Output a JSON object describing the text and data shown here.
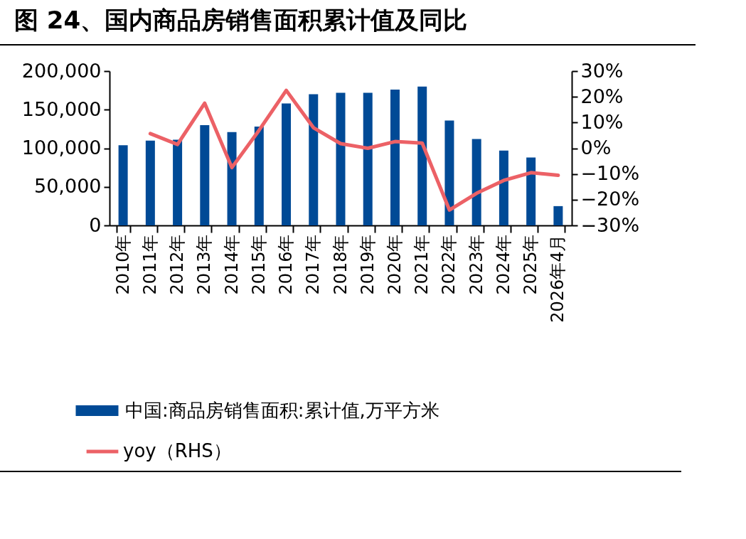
{
  "chart_data": {
    "type": "bar",
    "title": "图 24、国内商品房销售面积累计值及同比",
    "categories": [
      "2010年",
      "2011年",
      "2012年",
      "2013年",
      "2014年",
      "2015年",
      "2016年",
      "2017年",
      "2018年",
      "2019年",
      "2020年",
      "2021年",
      "2022年",
      "2023年",
      "2024年",
      "2025年",
      "2026年4月"
    ],
    "series": [
      {
        "name": "中国:商品房销售面积:累计值,万平方米",
        "color": "#004a96",
        "values": [
          104000,
          110000,
          111000,
          130000,
          121000,
          128000,
          158000,
          170000,
          172000,
          172000,
          176000,
          180000,
          136000,
          112000,
          97000,
          88000,
          25000
        ]
      },
      {
        "name": "yoy（RHS）",
        "type": "line",
        "axis": "y2",
        "color": "#ec6166",
        "values": [
          null,
          5.7,
          1.5,
          17.5,
          -7.5,
          7,
          22.5,
          8,
          1.8,
          0,
          2.6,
          2,
          -24,
          -17.5,
          -12.5,
          -9.5,
          -10.5
        ]
      }
    ],
    "ylim": [
      0,
      200000
    ],
    "yticks": [
      {
        "value": 0,
        "label": "0"
      },
      {
        "value": 50000,
        "label": "50,000"
      },
      {
        "value": 100000,
        "label": "100,000"
      },
      {
        "value": 150000,
        "label": "150,000"
      },
      {
        "value": 200000,
        "label": "200,000"
      }
    ],
    "y2lim": [
      -30,
      30
    ],
    "y2ticks": [
      {
        "value": -30,
        "label": "−30%"
      },
      {
        "value": -20,
        "label": "−20%"
      },
      {
        "value": -10,
        "label": "−10%"
      },
      {
        "value": 0,
        "label": "0%"
      },
      {
        "value": 10,
        "label": "10%"
      },
      {
        "value": 20,
        "label": "20%"
      },
      {
        "value": 30,
        "label": "30%"
      }
    ],
    "legend": "bottom",
    "grid": false,
    "marker": "none",
    "line_style": "solid"
  }
}
